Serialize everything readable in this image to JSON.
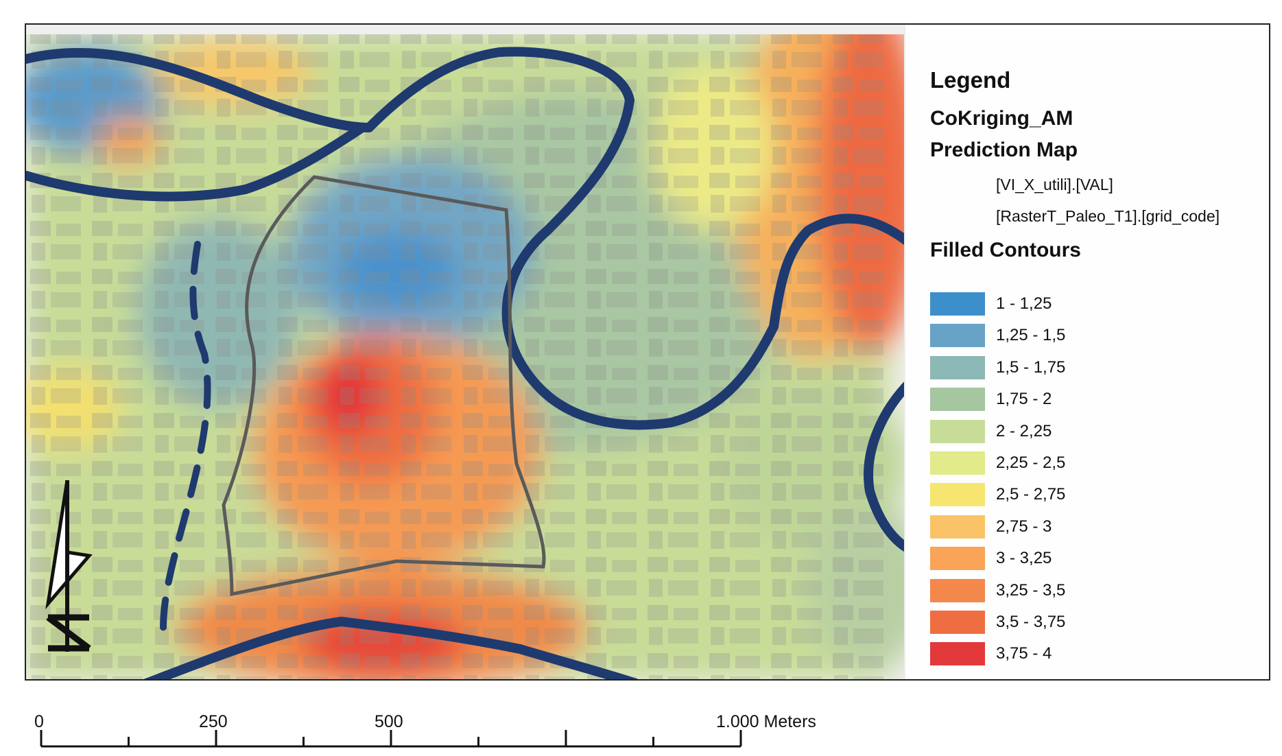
{
  "legend": {
    "title": "Legend",
    "layer": "CoKriging_AM",
    "prediction": "Prediction Map",
    "field1": "[VI_X_utili].[VAL]",
    "field2": "[RasterT_Paleo_T1].[grid_code]",
    "filled": "Filled Contours",
    "items": [
      {
        "label": "1 - 1,25",
        "color": "#3d8fcc"
      },
      {
        "label": "1,25 - 1,5",
        "color": "#66a3c6"
      },
      {
        "label": "1,5 - 1,75",
        "color": "#8cb8b5"
      },
      {
        "label": "1,75 - 2",
        "color": "#a6c6a0"
      },
      {
        "label": "2 - 2,25",
        "color": "#c6dc98"
      },
      {
        "label": "2,25 - 2,5",
        "color": "#e2ea8a"
      },
      {
        "label": "2,5 - 2,75",
        "color": "#f6e670"
      },
      {
        "label": "2,75 - 3",
        "color": "#fbc367"
      },
      {
        "label": "3 - 3,25",
        "color": "#f9a456"
      },
      {
        "label": "3,25 - 3,5",
        "color": "#f4884b"
      },
      {
        "label": "3,5 - 3,75",
        "color": "#ee6e42"
      },
      {
        "label": "3,75 - 4",
        "color": "#e3393b"
      }
    ]
  },
  "scalebar": {
    "labels": [
      "0",
      "250",
      "500",
      "1.000 Meters"
    ]
  },
  "map": {
    "paleo_color": "#1f3a6e",
    "area_color": "#5a5a5a"
  }
}
